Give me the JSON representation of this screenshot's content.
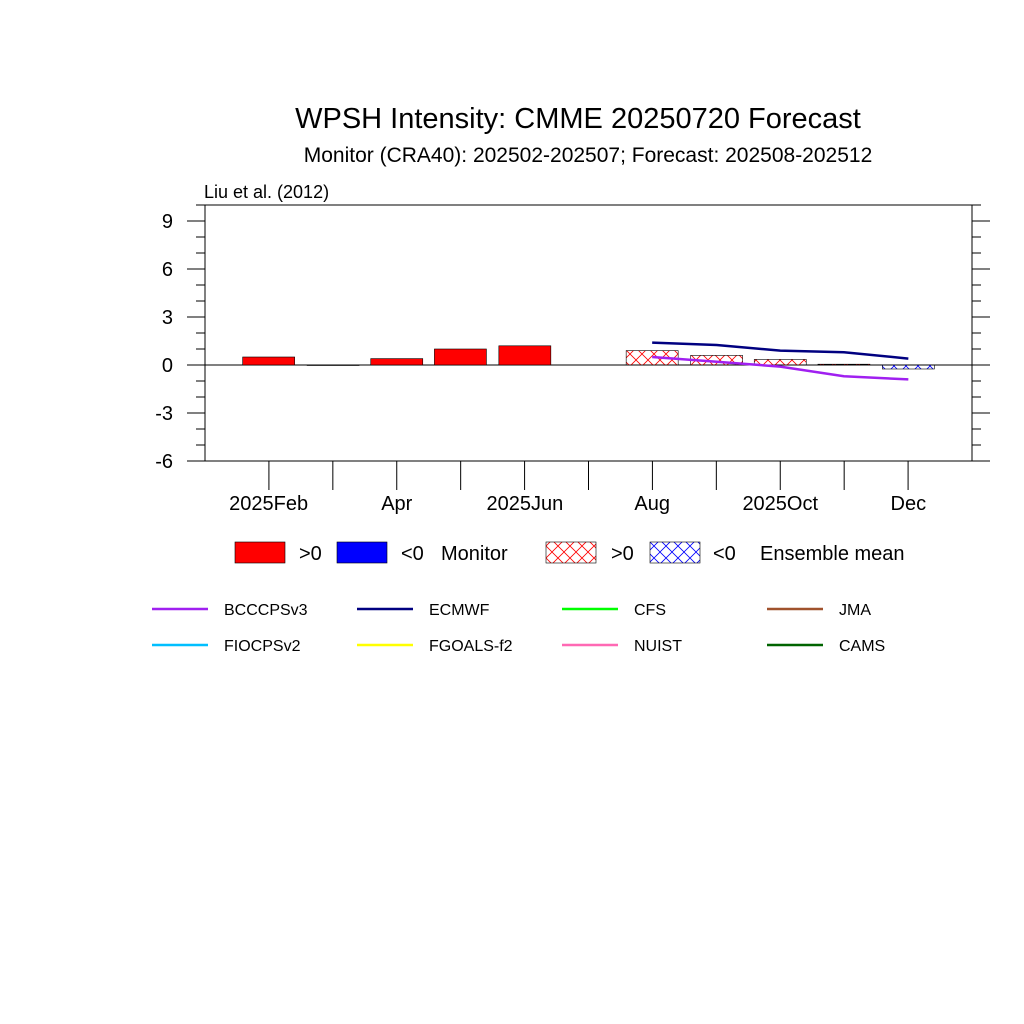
{
  "chart_data": {
    "type": "bar",
    "title": "WPSH Intensity: CMME 20250720 Forecast",
    "subtitle": "Monitor (CRA40): 202502-202507; Forecast: 202508-202512",
    "corner_label": "Liu et al. (2012)",
    "xlabel": "",
    "ylabel": "",
    "ylim": [
      -6,
      10
    ],
    "xlim": [
      2025.0,
      2026.0
    ],
    "y_ticks": [
      -6,
      -3,
      0,
      3,
      6,
      9
    ],
    "y_tick_labels": [
      "-6",
      "-3",
      "0",
      "3",
      "6",
      "9"
    ],
    "x_ticks": [
      2025.083,
      2025.25,
      2025.417,
      2025.583,
      2025.75,
      2025.917
    ],
    "x_tick_labels": [
      "2025Feb",
      "Apr",
      "2025Jun",
      "Aug",
      "2025Oct",
      "Dec"
    ],
    "monitor": {
      "months": [
        2025.083,
        2025.167,
        2025.25,
        2025.333,
        2025.417
      ],
      "values": [
        0.5,
        0.0,
        0.4,
        1.0,
        1.2
      ],
      "pos_color": "#ff0000",
      "neg_color": "#0000ff"
    },
    "ensemble_mean": {
      "months": [
        2025.583,
        2025.667,
        2025.75,
        2025.833,
        2025.917
      ],
      "values": [
        0.9,
        0.6,
        0.35,
        0.05,
        -0.25
      ],
      "pos_color": "#ff0000",
      "neg_color": "#0000ff"
    },
    "series": [
      {
        "name": "BCCCPSv3",
        "color": "#a020f0",
        "x": [
          2025.583,
          2025.667,
          2025.75,
          2025.833,
          2025.917
        ],
        "values": [
          0.5,
          0.2,
          -0.1,
          -0.7,
          -0.9
        ]
      },
      {
        "name": "ECMWF",
        "color": "#000080",
        "x": [
          2025.583,
          2025.667,
          2025.75,
          2025.833,
          2025.917
        ],
        "values": [
          1.4,
          1.25,
          0.9,
          0.8,
          0.4
        ]
      },
      {
        "name": "CFS",
        "color": "#00ff00",
        "x": [],
        "values": []
      },
      {
        "name": "JMA",
        "color": "#a0522d",
        "x": [],
        "values": []
      },
      {
        "name": "FIOCPSv2",
        "color": "#00bfff",
        "x": [],
        "values": []
      },
      {
        "name": "FGOALS-f2",
        "color": "#ffff00",
        "x": [],
        "values": []
      },
      {
        "name": "NUIST",
        "color": "#ff69b4",
        "x": [],
        "values": []
      },
      {
        "name": "CAMS",
        "color": "#006400",
        "x": [],
        "values": []
      }
    ],
    "legend": {
      "monitor_pos": ">0",
      "monitor_neg": "<0",
      "monitor_label": "Monitor",
      "ens_pos": ">0",
      "ens_neg": "<0",
      "ens_label": "Ensemble mean"
    }
  }
}
